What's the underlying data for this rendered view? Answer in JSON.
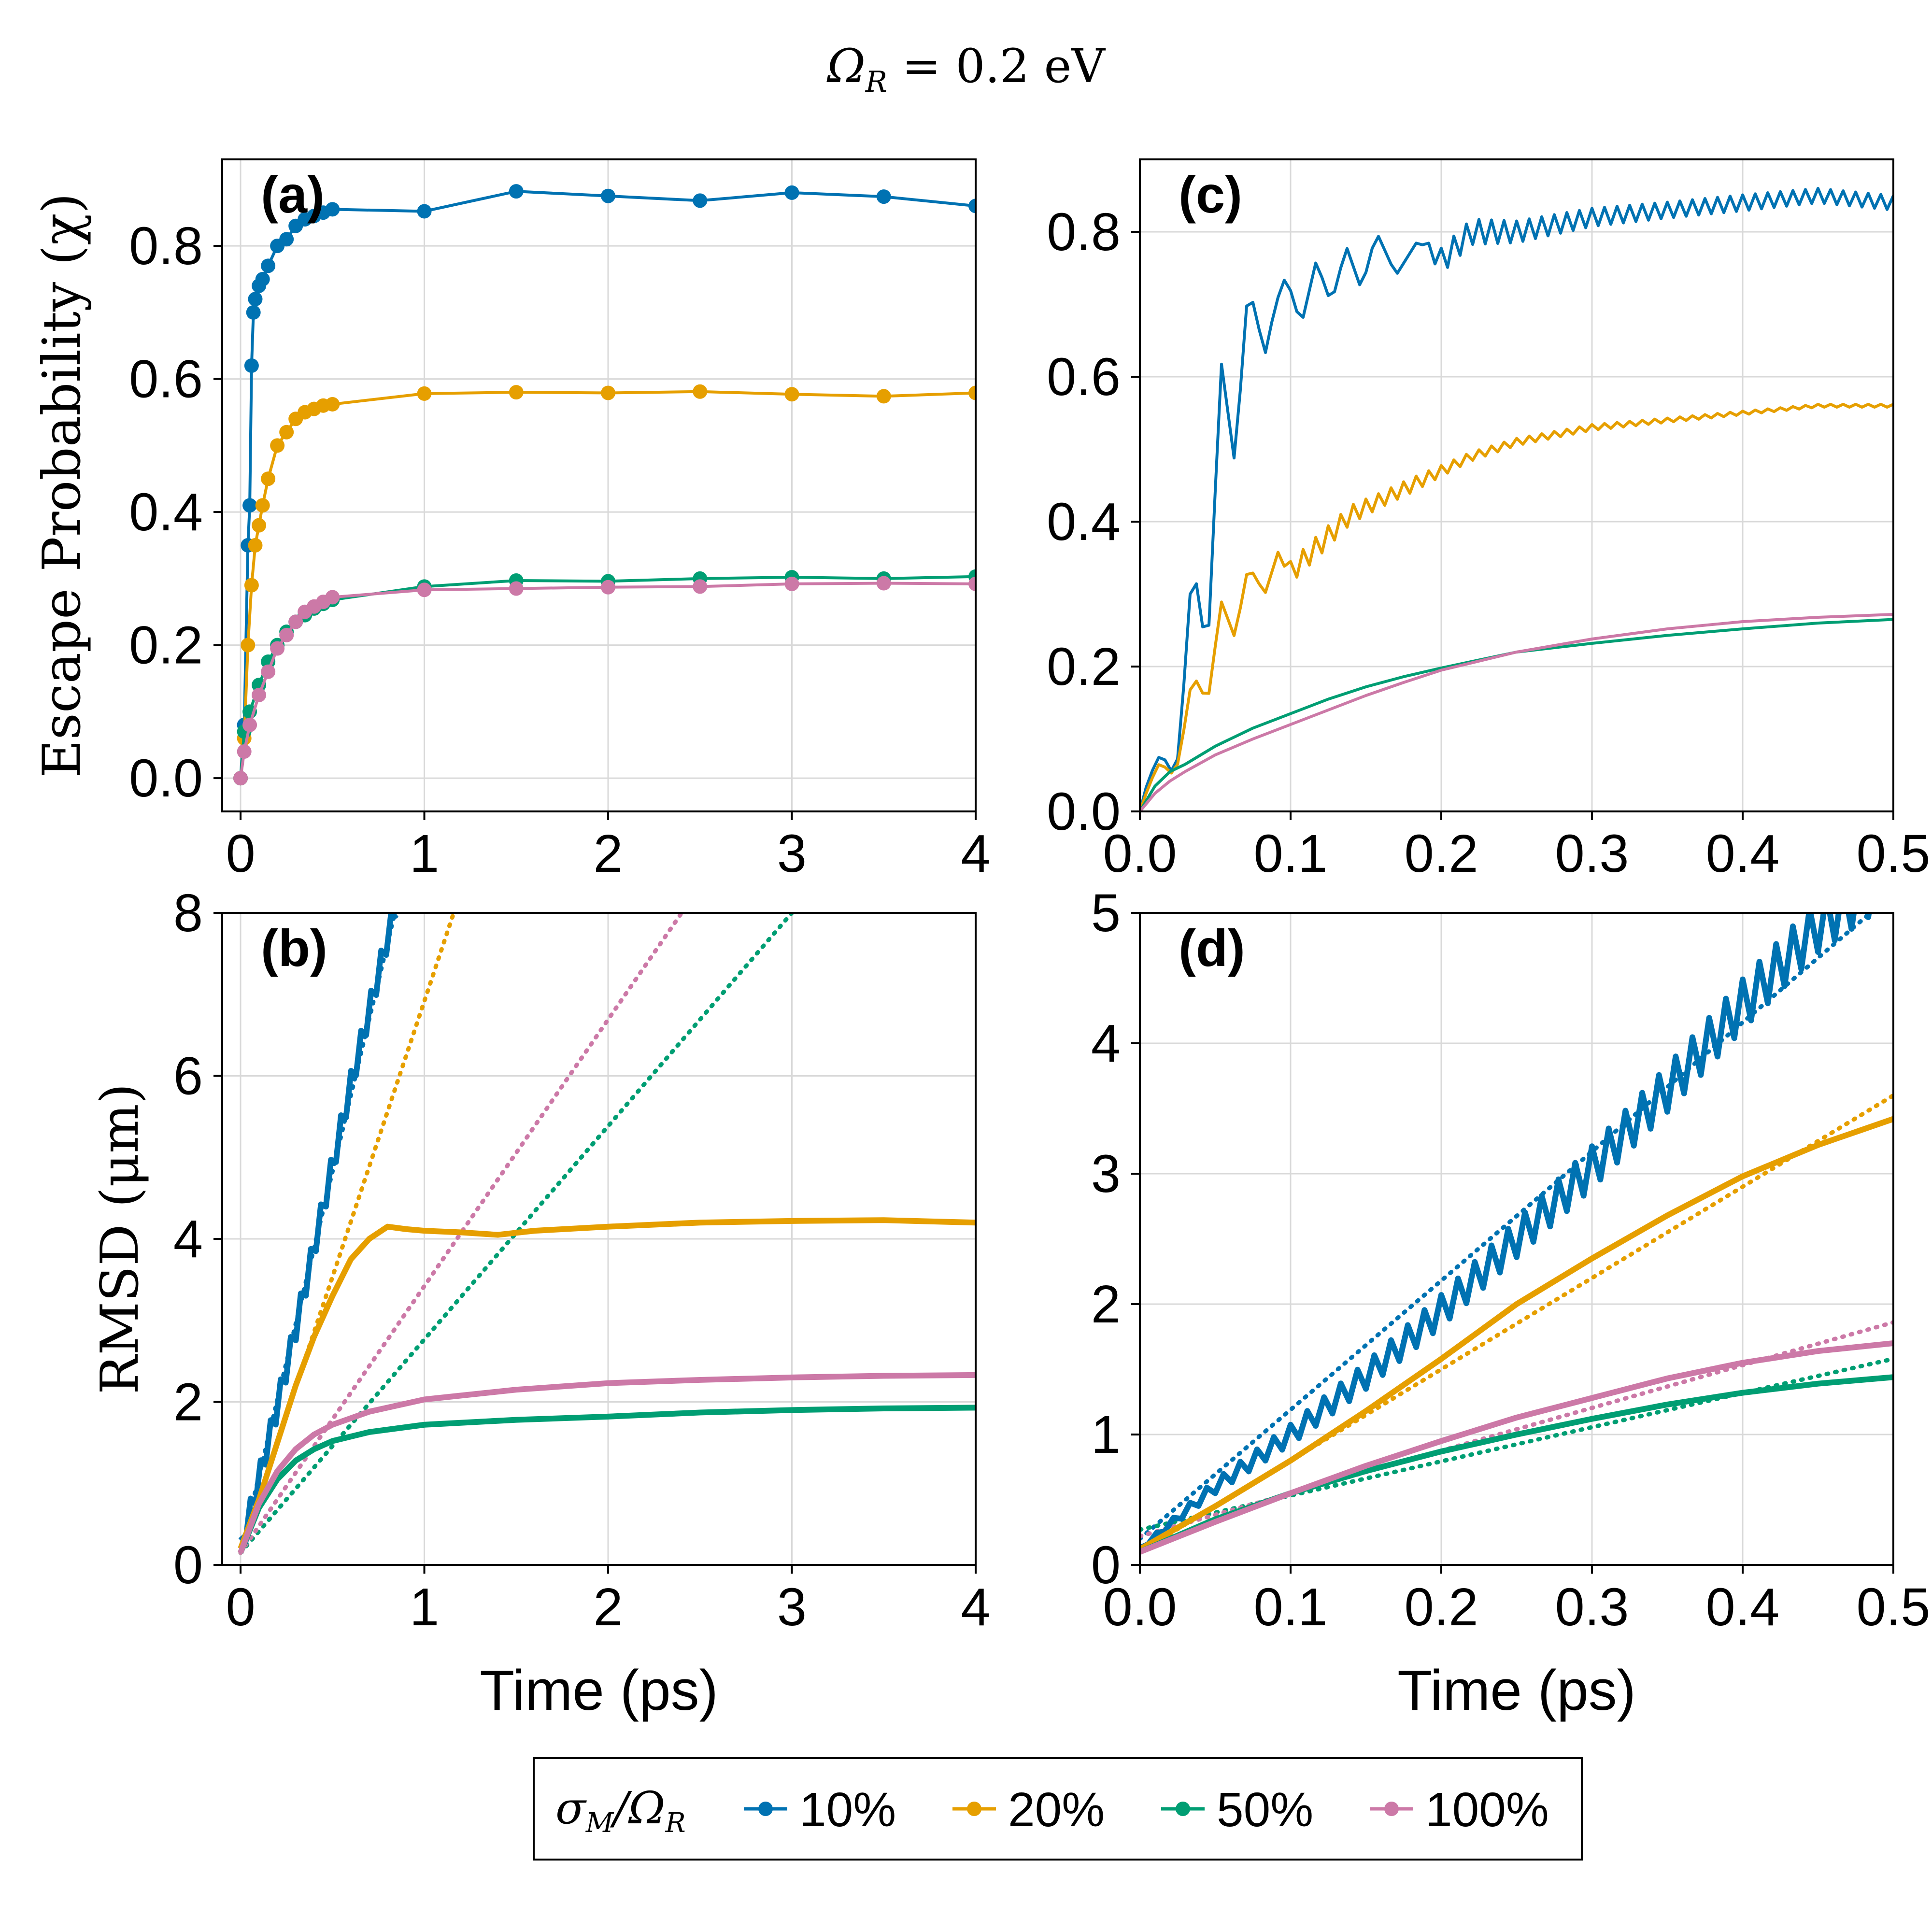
{
  "figure_title": "Ω_R = 0.2 eV",
  "figure_title_parts": {
    "symbol": "Ω",
    "subscript": "R",
    "rest": " = 0.2 eV"
  },
  "colors": {
    "s10": "#0072b2",
    "s20": "#e69f00",
    "s50": "#009e73",
    "s100": "#cc79a7",
    "grid": "#d9d9d9",
    "axis": "#000000"
  },
  "legend": {
    "title": "σ_M/Ω_R",
    "title_parts": {
      "a": "σ",
      "a_sub": "M",
      "b": "/Ω",
      "b_sub": "R"
    },
    "entries": [
      "10%",
      "20%",
      "50%",
      "100%"
    ]
  },
  "chart_data": [
    {
      "id": "a",
      "panel_label": "(a)",
      "type": "line",
      "title": "",
      "xlabel": "",
      "ylabel": "Escape Probability (χ)",
      "xlim": [
        -0.1,
        4
      ],
      "ylim": [
        -0.05,
        0.93
      ],
      "xticks": [
        "0",
        "1",
        "2",
        "3",
        "4"
      ],
      "xtick_values": [
        0,
        1,
        2,
        3,
        4
      ],
      "yticks": [
        "0.0",
        "0.2",
        "0.4",
        "0.6",
        "0.8"
      ],
      "ytick_values": [
        0,
        0.2,
        0.4,
        0.6,
        0.8
      ],
      "grid": true,
      "markers": true,
      "series": [
        {
          "name": "10%",
          "x": [
            0,
            0.02,
            0.04,
            0.05,
            0.06,
            0.07,
            0.08,
            0.1,
            0.12,
            0.15,
            0.2,
            0.25,
            0.3,
            0.35,
            0.4,
            0.45,
            0.5,
            1,
            1.5,
            2,
            2.5,
            3,
            3.5,
            4
          ],
          "y": [
            0,
            0.08,
            0.35,
            0.41,
            0.62,
            0.7,
            0.72,
            0.74,
            0.75,
            0.77,
            0.8,
            0.81,
            0.83,
            0.84,
            0.845,
            0.85,
            0.855,
            0.852,
            0.882,
            0.875,
            0.868,
            0.88,
            0.874,
            0.86
          ]
        },
        {
          "name": "20%",
          "x": [
            0,
            0.02,
            0.04,
            0.06,
            0.08,
            0.1,
            0.12,
            0.15,
            0.2,
            0.25,
            0.3,
            0.35,
            0.4,
            0.45,
            0.5,
            1,
            1.5,
            2,
            2.5,
            3,
            3.5,
            4
          ],
          "y": [
            0,
            0.06,
            0.2,
            0.29,
            0.35,
            0.38,
            0.41,
            0.45,
            0.5,
            0.52,
            0.54,
            0.55,
            0.555,
            0.56,
            0.562,
            0.578,
            0.58,
            0.579,
            0.581,
            0.577,
            0.574,
            0.579
          ]
        },
        {
          "name": "50%",
          "x": [
            0,
            0.02,
            0.05,
            0.1,
            0.15,
            0.2,
            0.25,
            0.3,
            0.35,
            0.4,
            0.45,
            0.5,
            1,
            1.5,
            2,
            2.5,
            3,
            3.5,
            4
          ],
          "y": [
            0,
            0.07,
            0.1,
            0.14,
            0.175,
            0.2,
            0.22,
            0.235,
            0.245,
            0.255,
            0.262,
            0.268,
            0.288,
            0.297,
            0.296,
            0.3,
            0.302,
            0.3,
            0.303
          ]
        },
        {
          "name": "100%",
          "x": [
            0,
            0.02,
            0.05,
            0.1,
            0.15,
            0.2,
            0.25,
            0.3,
            0.35,
            0.4,
            0.45,
            0.5,
            1,
            1.5,
            2,
            2.5,
            3,
            3.5,
            4
          ],
          "y": [
            0,
            0.04,
            0.08,
            0.125,
            0.16,
            0.195,
            0.215,
            0.235,
            0.25,
            0.258,
            0.265,
            0.272,
            0.283,
            0.285,
            0.287,
            0.288,
            0.292,
            0.293,
            0.292
          ]
        }
      ]
    },
    {
      "id": "b",
      "panel_label": "(b)",
      "type": "line",
      "title": "",
      "xlabel": "Time (ps)",
      "ylabel": "RMSD (μm)",
      "xlim": [
        -0.1,
        4
      ],
      "ylim": [
        0,
        8
      ],
      "xticks": [
        "0",
        "1",
        "2",
        "3",
        "4"
      ],
      "xtick_values": [
        0,
        1,
        2,
        3,
        4
      ],
      "yticks": [
        "0",
        "2",
        "4",
        "6",
        "8"
      ],
      "ytick_values": [
        0,
        2,
        4,
        6,
        8
      ],
      "grid": true,
      "markers": false,
      "series": [
        {
          "name": "10%",
          "oscillation": 0.3,
          "x": [
            0,
            0.1,
            0.2,
            0.3,
            0.4,
            0.5,
            0.6,
            0.7,
            0.8,
            0.85
          ],
          "y": [
            0.2,
            1.05,
            1.95,
            2.9,
            3.9,
            4.9,
            5.9,
            6.8,
            7.7,
            8.1
          ]
        },
        {
          "name": "20%",
          "x": [
            0,
            0.1,
            0.2,
            0.3,
            0.4,
            0.5,
            0.6,
            0.7,
            0.8,
            0.9,
            1,
            1.2,
            1.4,
            1.6,
            2,
            2.5,
            3,
            3.5,
            4
          ],
          "y": [
            0.2,
            0.8,
            1.5,
            2.2,
            2.8,
            3.3,
            3.75,
            4.0,
            4.15,
            4.12,
            4.1,
            4.08,
            4.05,
            4.1,
            4.15,
            4.2,
            4.22,
            4.23,
            4.2
          ]
        },
        {
          "name": "50%",
          "x": [
            0,
            0.1,
            0.2,
            0.3,
            0.4,
            0.5,
            0.7,
            1,
            1.5,
            2,
            2.5,
            3,
            3.5,
            4
          ],
          "y": [
            0.15,
            0.7,
            1.05,
            1.28,
            1.42,
            1.52,
            1.63,
            1.72,
            1.78,
            1.82,
            1.87,
            1.9,
            1.92,
            1.93
          ]
        },
        {
          "name": "100%",
          "x": [
            0,
            0.1,
            0.2,
            0.3,
            0.4,
            0.5,
            0.7,
            1,
            1.5,
            2,
            2.5,
            3,
            3.5,
            4
          ],
          "y": [
            0.15,
            0.75,
            1.15,
            1.42,
            1.6,
            1.72,
            1.88,
            2.03,
            2.15,
            2.23,
            2.27,
            2.3,
            2.32,
            2.33
          ]
        }
      ],
      "fits": [
        {
          "name": "10% fit",
          "x": [
            0,
            0.85
          ],
          "y": [
            0.15,
            8.1
          ]
        },
        {
          "name": "20% fit",
          "x": [
            0,
            1.16
          ],
          "y": [
            0.15,
            8.0
          ]
        },
        {
          "name": "50% fit",
          "x": [
            0,
            3
          ],
          "y": [
            0.15,
            8.0
          ]
        },
        {
          "name": "100% fit",
          "x": [
            0,
            2.4
          ],
          "y": [
            0.15,
            8.0
          ]
        }
      ]
    },
    {
      "id": "c",
      "panel_label": "(c)",
      "type": "line",
      "title": "",
      "xlabel": "",
      "ylabel": "",
      "xlim": [
        0,
        0.5
      ],
      "ylim": [
        0,
        0.9
      ],
      "xticks": [
        "0.0",
        "0.1",
        "0.2",
        "0.3",
        "0.4",
        "0.5"
      ],
      "xtick_values": [
        0,
        0.1,
        0.2,
        0.3,
        0.4,
        0.5
      ],
      "yticks": [
        "0.0",
        "0.2",
        "0.4",
        "0.6",
        "0.8"
      ],
      "ytick_values": [
        0,
        0.2,
        0.4,
        0.6,
        0.8
      ],
      "grid": true,
      "markers": false,
      "series": [
        {
          "name": "10%",
          "x": [
            0,
            0.005,
            0.012,
            0.018,
            0.022,
            0.026,
            0.035,
            0.042,
            0.045,
            0.054,
            0.063,
            0.072,
            0.083,
            0.09,
            0.097,
            0.107,
            0.117,
            0.127,
            0.137,
            0.147,
            0.157,
            0.17,
            0.185,
            0.2,
            0.22,
            0.25,
            0.3,
            0.35,
            0.4,
            0.45,
            0.5
          ],
          "y": [
            0,
            0.04,
            0.075,
            0.07,
            0.05,
            0.08,
            0.35,
            0.25,
            0.22,
            0.62,
            0.48,
            0.73,
            0.63,
            0.7,
            0.74,
            0.67,
            0.76,
            0.7,
            0.78,
            0.72,
            0.8,
            0.74,
            0.79,
            0.76,
            0.8,
            0.8,
            0.82,
            0.83,
            0.84,
            0.85,
            0.84
          ],
          "oscillation": [
            0,
            0,
            0,
            0,
            0,
            0,
            0,
            0,
            0,
            0,
            0,
            0,
            0,
            0,
            0,
            0,
            0,
            0,
            0,
            0,
            0,
            0,
            0,
            0.035,
            0.035,
            0.03,
            0.025,
            0.022,
            0.022,
            0.02,
            0.02
          ]
        },
        {
          "name": "20%",
          "x": [
            0,
            0.005,
            0.012,
            0.018,
            0.022,
            0.026,
            0.035,
            0.04,
            0.045,
            0.054,
            0.063,
            0.072,
            0.083,
            0.092,
            0.1,
            0.12,
            0.14,
            0.16,
            0.18,
            0.2,
            0.22,
            0.25,
            0.3,
            0.35,
            0.4,
            0.45,
            0.5
          ],
          "y": [
            0,
            0.03,
            0.065,
            0.06,
            0.05,
            0.07,
            0.19,
            0.17,
            0.15,
            0.29,
            0.24,
            0.34,
            0.3,
            0.36,
            0.33,
            0.37,
            0.41,
            0.43,
            0.45,
            0.47,
            0.49,
            0.51,
            0.53,
            0.54,
            0.55,
            0.56,
            0.56
          ],
          "oscillation": [
            0,
            0,
            0,
            0,
            0,
            0,
            0,
            0,
            0,
            0,
            0,
            0,
            0,
            0,
            0.03,
            0.03,
            0.025,
            0.02,
            0.02,
            0.015,
            0.012,
            0.01,
            0.008,
            0.006,
            0.005,
            0.004,
            0.004
          ]
        },
        {
          "name": "50%",
          "x": [
            0,
            0.01,
            0.02,
            0.03,
            0.05,
            0.075,
            0.1,
            0.125,
            0.15,
            0.175,
            0.2,
            0.25,
            0.3,
            0.35,
            0.4,
            0.45,
            0.5
          ],
          "y": [
            0,
            0.035,
            0.055,
            0.065,
            0.09,
            0.115,
            0.135,
            0.155,
            0.172,
            0.186,
            0.198,
            0.22,
            0.232,
            0.243,
            0.252,
            0.26,
            0.265
          ]
        },
        {
          "name": "100%",
          "x": [
            0,
            0.01,
            0.02,
            0.03,
            0.05,
            0.075,
            0.1,
            0.125,
            0.15,
            0.175,
            0.2,
            0.25,
            0.3,
            0.35,
            0.4,
            0.45,
            0.5
          ],
          "y": [
            0,
            0.025,
            0.042,
            0.055,
            0.078,
            0.1,
            0.12,
            0.14,
            0.16,
            0.178,
            0.195,
            0.22,
            0.238,
            0.252,
            0.262,
            0.268,
            0.272
          ]
        }
      ]
    },
    {
      "id": "d",
      "panel_label": "(d)",
      "type": "line",
      "title": "",
      "xlabel": "Time (ps)",
      "ylabel": "",
      "xlim": [
        0,
        0.5
      ],
      "ylim": [
        0,
        5
      ],
      "xticks": [
        "0.0",
        "0.1",
        "0.2",
        "0.3",
        "0.4",
        "0.5"
      ],
      "xtick_values": [
        0,
        0.1,
        0.2,
        0.3,
        0.4,
        0.5
      ],
      "yticks": [
        "0",
        "1",
        "2",
        "3",
        "4",
        "5"
      ],
      "ytick_values": [
        0,
        1,
        2,
        3,
        4,
        5
      ],
      "grid": true,
      "markers": false,
      "series": [
        {
          "name": "10%",
          "x": [
            0,
            0.05,
            0.1,
            0.15,
            0.2,
            0.25,
            0.3,
            0.35,
            0.4,
            0.45,
            0.5
          ],
          "y": [
            0.12,
            0.6,
            1.0,
            1.45,
            1.95,
            2.5,
            3.05,
            3.65,
            4.3,
            4.9,
            5.3
          ],
          "oscillation": [
            0.02,
            0.1,
            0.15,
            0.2,
            0.24,
            0.28,
            0.32,
            0.35,
            0.38,
            0.4,
            0.4
          ]
        },
        {
          "name": "20%",
          "x": [
            0,
            0.05,
            0.1,
            0.15,
            0.2,
            0.25,
            0.3,
            0.35,
            0.4,
            0.45,
            0.5
          ],
          "y": [
            0.12,
            0.45,
            0.8,
            1.18,
            1.58,
            2.0,
            2.35,
            2.68,
            2.98,
            3.22,
            3.42
          ]
        },
        {
          "name": "50%",
          "x": [
            0,
            0.05,
            0.1,
            0.15,
            0.2,
            0.25,
            0.3,
            0.35,
            0.4,
            0.45,
            0.5
          ],
          "y": [
            0.1,
            0.35,
            0.55,
            0.72,
            0.87,
            1.0,
            1.12,
            1.23,
            1.32,
            1.39,
            1.44
          ]
        },
        {
          "name": "100%",
          "x": [
            0,
            0.05,
            0.1,
            0.15,
            0.2,
            0.25,
            0.3,
            0.35,
            0.4,
            0.45,
            0.5
          ],
          "y": [
            0.1,
            0.33,
            0.55,
            0.76,
            0.95,
            1.13,
            1.28,
            1.43,
            1.55,
            1.64,
            1.7
          ]
        }
      ],
      "fits": [
        {
          "name": "10% fit",
          "x": [
            0,
            0.5
          ],
          "y": [
            0.2,
            5.15
          ]
        },
        {
          "name": "20% fit",
          "x": [
            0,
            0.5
          ],
          "y": [
            0.1,
            3.6
          ]
        },
        {
          "name": "50% fit",
          "x": [
            0,
            0.5
          ],
          "y": [
            0.27,
            1.58
          ]
        },
        {
          "name": "100% fit",
          "x": [
            0,
            0.5
          ],
          "y": [
            0.22,
            1.86
          ]
        }
      ]
    }
  ]
}
